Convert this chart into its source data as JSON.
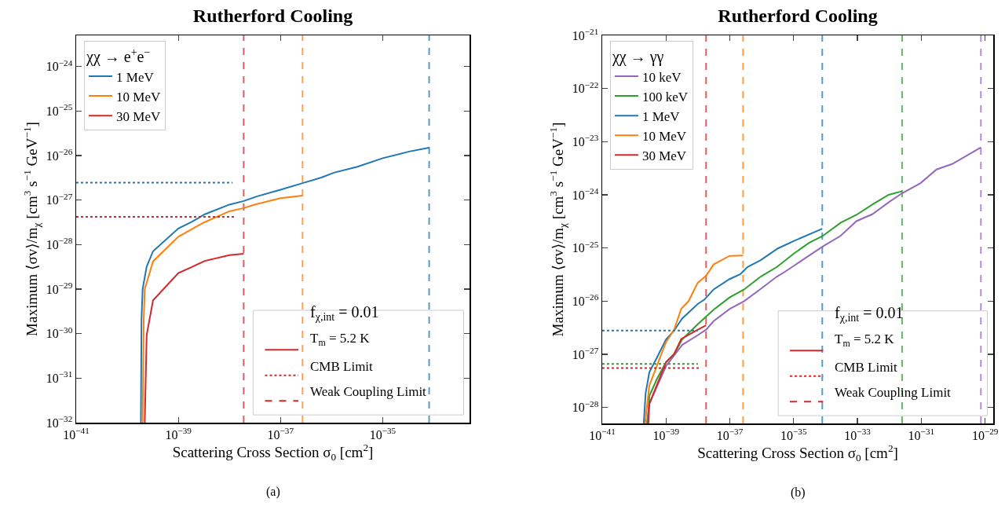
{
  "chart_data": [
    {
      "type": "line",
      "title": "Rutherford Cooling",
      "xlabel": "Scattering Cross Section σ$_{0}$ [cm$^{2}$]",
      "ylabel": "Maximum ⟨σv⟩/m$_{χ}$ [cm$^{3}$ s$^{−1}$ GeV$^{−1}$]",
      "legend_title": "χχ → e$^{+}$e$^{−}$",
      "legend": "top left",
      "grid": false,
      "log": "xy",
      "xlim": [
        1e-41,
        5e-34
      ],
      "ylim": [
        1e-32,
        5e-24
      ],
      "xticks": [
        {
          "value": 1e-41,
          "label": "10$^{−41}$"
        },
        {
          "value": 1e-39,
          "label": "10$^{−39}$"
        },
        {
          "value": 1e-37,
          "label": "10$^{−37}$"
        },
        {
          "value": 1e-35,
          "label": "10$^{−35}$"
        }
      ],
      "yticks": [
        {
          "value": 1e-32,
          "label": "10$^{−32}$"
        },
        {
          "value": 1e-31,
          "label": "10$^{−31}$"
        },
        {
          "value": 1e-30,
          "label": "10$^{−30}$"
        },
        {
          "value": 1e-29,
          "label": "10$^{−29}$"
        },
        {
          "value": 1e-28,
          "label": "10$^{−28}$"
        },
        {
          "value": 1e-27,
          "label": "10$^{−27}$"
        },
        {
          "value": 1e-26,
          "label": "10$^{−26}$"
        },
        {
          "value": 1e-25,
          "label": "10$^{−25}$"
        },
        {
          "value": 1e-24,
          "label": "10$^{−24}$"
        }
      ],
      "series": [
        {
          "name": "1 MeV",
          "color": "#1f77b4",
          "x": [
            1.85e-40,
            1.9e-40,
            2e-40,
            2.4e-40,
            3.2e-40,
            1e-39,
            1.8e-39,
            3.3e-39,
            1e-38,
            1.9e-38,
            3.4e-38,
            1e-37,
            2.7e-37,
            6.3e-37,
            1.1e-36,
            3.2e-36,
            1e-35,
            3.3e-35,
            8.1e-35
          ],
          "values": [
            1e-32,
            2.1e-30,
            1e-29,
            3.2e-29,
            7.1e-29,
            2.3e-28,
            3.2e-28,
            4.8e-28,
            7.9e-28,
            9.5e-28,
            1.2e-27,
            1.7e-27,
            2.4e-27,
            3.2e-27,
            4.1e-27,
            5.6e-27,
            8.7e-27,
            1.23e-26,
            1.5e-26
          ]
        },
        {
          "name": "10 MeV",
          "color": "#ff7f0e",
          "x": [
            2e-40,
            2.1e-40,
            2.2e-40,
            3.2e-40,
            1e-39,
            3.1e-39,
            1e-38,
            1.9e-38,
            3.1e-38,
            1e-37,
            2.7e-37
          ],
          "values": [
            1e-32,
            2.1e-30,
            1e-29,
            4.2e-29,
            1.5e-28,
            3.1e-28,
            5.6e-28,
            6.6e-28,
            7.9e-28,
            1.1e-27,
            1.26e-27
          ]
        },
        {
          "name": "30 MeV",
          "color": "#d62728",
          "x": [
            2.2e-40,
            2.4e-40,
            3.2e-40,
            1e-39,
            1.8e-39,
            3.3e-39,
            1e-38,
            1.9e-38
          ],
          "values": [
            1e-32,
            9.3e-31,
            5.6e-30,
            2.3e-29,
            3.1e-29,
            4.3e-29,
            5.8e-29,
            6.2e-29
          ]
        },
        {
          "color": "#1f77b4",
          "line_style": "dotted",
          "x": [
            1e-41,
            1.15e-38
          ],
          "values": [
            2.45e-27,
            2.45e-27
          ]
        },
        {
          "color": "#d62728",
          "line_style": "dotted",
          "x": [
            1e-41,
            1.3e-38
          ],
          "values": [
            4.2e-28,
            4.2e-28
          ]
        }
      ],
      "ref_lines": [
        {
          "axis": "x",
          "value": 1.9e-38,
          "color": "#d62728",
          "line_style": "dashed"
        },
        {
          "axis": "x",
          "value": 2.7e-37,
          "color": "#ff7f0e",
          "line_style": "dashed"
        },
        {
          "axis": "x",
          "value": 8.1e-35,
          "color": "#1f77b4",
          "line_style": "dashed"
        }
      ],
      "annotations": [
        "f$_{χ,int}$ = 0.01",
        "T$_{m}$ = 5.2 K",
        "CMB Limit",
        "Weak Coupling Limit",
        "(a)"
      ]
    },
    {
      "type": "line",
      "title": "Rutherford Cooling",
      "xlabel": "Scattering Cross Section σ$_{0}$ [cm$^{2}$]",
      "ylabel": "Maximum ⟨σv⟩/m$_{χ}$ [cm$^{3}$ s$^{−1}$ GeV$^{−1}$]",
      "legend_title": "χχ → γγ",
      "legend": "top left",
      "grid": false,
      "log": "xy",
      "xlim": [
        1e-41,
        1.8e-29
      ],
      "ylim": [
        5e-29,
        1e-21
      ],
      "xticks": [
        {
          "value": 1e-41,
          "label": "10$^{−41}$"
        },
        {
          "value": 1e-39,
          "label": "10$^{−39}$"
        },
        {
          "value": 1e-37,
          "label": "10$^{−37}$"
        },
        {
          "value": 1e-35,
          "label": "10$^{−35}$"
        },
        {
          "value": 1e-33,
          "label": "10$^{−33}$"
        },
        {
          "value": 1e-31,
          "label": "10$^{−31}$"
        },
        {
          "value": 1e-29,
          "label": "10$^{−29}$"
        }
      ],
      "yticks": [
        {
          "value": 1e-28,
          "label": "10$^{−28}$"
        },
        {
          "value": 1e-27,
          "label": "10$^{−27}$"
        },
        {
          "value": 1e-26,
          "label": "10$^{−26}$"
        },
        {
          "value": 1e-25,
          "label": "10$^{−25}$"
        },
        {
          "value": 1e-24,
          "label": "10$^{−24}$"
        },
        {
          "value": 1e-23,
          "label": "10$^{−23}$"
        },
        {
          "value": 1e-22,
          "label": "10$^{−22}$"
        },
        {
          "value": 1e-21,
          "label": "10$^{−21}$"
        }
      ],
      "series": [
        {
          "name": "10 keV",
          "color": "#9467bd",
          "x": [
            2.5e-40,
            3e-40,
            5.4e-40,
            1e-39,
            3.2e-39,
            1e-38,
            1.8e-38,
            3.1e-38,
            9.8e-38,
            2.8e-37,
            9.3e-37,
            3e-36,
            5.1e-36,
            1e-35,
            7.9e-35,
            3e-34,
            9.3e-34,
            2.9e-33,
            1e-32,
            2.5e-32,
            9.5e-32,
            3e-31,
            9.3e-31,
            7.4e-30
          ],
          "values": [
            5e-29,
            1.17e-28,
            2.6e-28,
            6e-28,
            1.5e-27,
            2.3e-27,
            2.9e-27,
            4.2e-27,
            7.1e-27,
            1e-26,
            1.7e-26,
            2.9e-26,
            3.5e-26,
            4.6e-26,
            1.05e-25,
            1.7e-25,
            3.2e-25,
            4.3e-25,
            7.4e-25,
            1.07e-24,
            1.66e-24,
            3e-24,
            3.8e-24,
            7.8e-24
          ]
        },
        {
          "name": "100 keV",
          "color": "#2ca02c",
          "x": [
            2.7e-40,
            3e-40,
            5.4e-40,
            1e-39,
            1.8e-39,
            3.2e-39,
            1e-38,
            3.1e-38,
            9.8e-38,
            2.8e-37,
            9.3e-37,
            3e-36,
            1e-35,
            3.1e-35,
            7.9e-35,
            3e-34,
            9.3e-34,
            3.2e-33,
            9.5e-33,
            2.5e-32
          ],
          "values": [
            5e-29,
            1.66e-28,
            3.6e-28,
            7.1e-28,
            1e-27,
            1.9e-27,
            3.7e-27,
            6.9e-27,
            1.17e-26,
            1.66e-26,
            2.9e-26,
            4.4e-26,
            7.8e-26,
            1.26e-25,
            1.66e-25,
            3e-25,
            4.2e-25,
            6.8e-25,
            1e-24,
            1.17e-24
          ]
        },
        {
          "name": "1 MeV",
          "color": "#1f77b4",
          "x": [
            2e-40,
            2.3e-40,
            3e-40,
            5.4e-40,
            1e-39,
            1.8e-39,
            3.2e-39,
            1e-38,
            1.6e-38,
            3.1e-38,
            9.8e-38,
            2.1e-37,
            3.6e-37,
            9.3e-37,
            3.2e-36,
            1e-35,
            7.9e-35
          ],
          "values": [
            5e-29,
            1.86e-28,
            4.6e-28,
            9.1e-28,
            1.9e-27,
            2.8e-27,
            4.7e-27,
            8.9e-27,
            1.07e-26,
            1.66e-26,
            2.6e-26,
            3.2e-26,
            4.4e-26,
            5.9e-26,
            9.8e-26,
            1.35e-25,
            2.3e-25
          ]
        },
        {
          "name": "10 MeV",
          "color": "#ff7f0e",
          "x": [
            2.2e-40,
            3e-40,
            5.4e-40,
            1e-39,
            1.8e-39,
            3e-39,
            5.1e-39,
            9.8e-39,
            1.8e-38,
            3.1e-38,
            9.8e-38,
            2.6e-37
          ],
          "values": [
            5e-29,
            2.6e-28,
            6.5e-28,
            1.7e-27,
            2.9e-27,
            7.2e-27,
            1e-26,
            2.2e-26,
            3e-26,
            4.9e-26,
            7.1e-26,
            7.2e-26
          ]
        },
        {
          "name": "30 MeV",
          "color": "#d62728",
          "x": [
            2.8e-40,
            3e-40,
            1e-39,
            1.8e-39,
            3e-39,
            1e-38,
            1.8e-38
          ],
          "values": [
            5e-29,
            1.17e-28,
            7.1e-28,
            1.02e-27,
            1.95e-27,
            2.9e-27,
            3.5e-27
          ]
        },
        {
          "color": "#1f77b4",
          "line_style": "dotted",
          "x": [
            1e-41,
            1e-38
          ],
          "values": [
            2.8e-27,
            2.8e-27
          ]
        },
        {
          "color": "#2ca02c",
          "line_style": "dotted",
          "x": [
            1e-41,
            1e-38
          ],
          "values": [
            6.6e-28,
            6.6e-28
          ]
        },
        {
          "color": "#d62728",
          "line_style": "dotted",
          "x": [
            1e-41,
            1.2e-38
          ],
          "values": [
            5.5e-28,
            5.5e-28
          ]
        }
      ],
      "ref_lines": [
        {
          "axis": "x",
          "value": 1.8e-38,
          "color": "#d62728",
          "line_style": "dashed"
        },
        {
          "axis": "x",
          "value": 2.6e-37,
          "color": "#ff7f0e",
          "line_style": "dashed"
        },
        {
          "axis": "x",
          "value": 7.9e-35,
          "color": "#1f77b4",
          "line_style": "dashed"
        },
        {
          "axis": "x",
          "value": 2.5e-32,
          "color": "#2ca02c",
          "line_style": "dashed"
        },
        {
          "axis": "x",
          "value": 7.4e-30,
          "color": "#9467bd",
          "line_style": "dashed"
        }
      ],
      "annotations": [
        "f$_{χ,int}$ = 0.01",
        "T$_{m}$ = 5.2 K",
        "CMB Limit",
        "Weak Coupling Limit",
        "(b)"
      ]
    }
  ]
}
